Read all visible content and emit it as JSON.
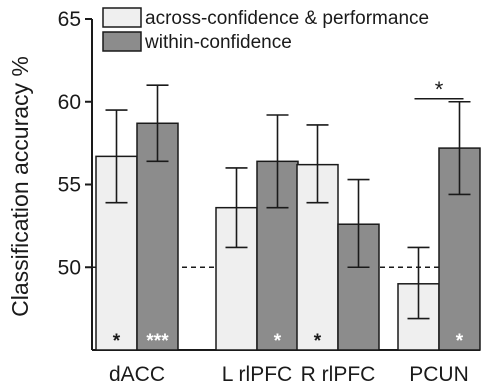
{
  "chart_data": {
    "type": "bar",
    "ylabel": "Classification accuracy %",
    "ylim": [
      45,
      65
    ],
    "yticks": [
      50,
      55,
      60,
      65
    ],
    "chance_level": 50,
    "categories": [
      "dACC",
      "L rlPFC",
      "R rlPFC",
      "PCUN"
    ],
    "series": [
      {
        "name": "across-confidence & performance",
        "color": "#efefef",
        "values": [
          56.7,
          53.6,
          56.2,
          49.0
        ],
        "error_low": [
          53.9,
          51.2,
          53.9,
          46.9
        ],
        "error_high": [
          59.5,
          56.0,
          58.6,
          51.2
        ],
        "significance": [
          "*",
          "",
          "*",
          ""
        ],
        "significance_color": "#1a1a1a"
      },
      {
        "name": "within-confidence",
        "color": "#8c8c8c",
        "values": [
          58.7,
          56.4,
          52.6,
          57.2
        ],
        "error_low": [
          56.4,
          53.6,
          50.0,
          54.4
        ],
        "error_high": [
          61.0,
          59.2,
          55.3,
          60.0
        ],
        "significance": [
          "***",
          "*",
          "",
          "*"
        ],
        "significance_color": "#ffffff"
      }
    ],
    "comparisons": [
      {
        "category": "PCUN",
        "label": "*"
      }
    ],
    "legend_position": "top",
    "grid": false
  }
}
